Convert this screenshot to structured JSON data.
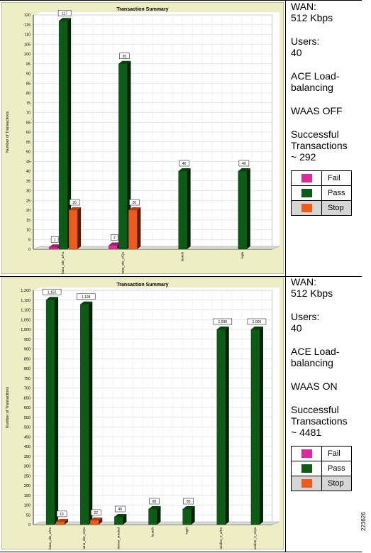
{
  "panels": [
    {
      "info": {
        "wan": "WAN:\n512 Kbps",
        "users": "Users:\n40",
        "lb": "ACE Load-\nbalancing",
        "waas": "WAAS OFF",
        "success": "Successful\nTransactions\n~ 292"
      }
    },
    {
      "info": {
        "wan": "WAN:\n512 Kbps",
        "users": "Users:\n40",
        "lb": "ACE Load-\nbalancing",
        "waas": "WAAS ON",
        "success": "Successful\nTransactions\n~ 4481"
      }
    }
  ],
  "legend": {
    "items": [
      {
        "label": "Fail",
        "color": "#e0299a"
      },
      {
        "label": "Pass",
        "color": "#0b5c14"
      },
      {
        "label": "Stop",
        "color": "#f25a1c"
      }
    ]
  },
  "figure_id": "223626",
  "chart_data": [
    {
      "type": "bar",
      "title": "Transaction Summary",
      "ylabel": "Number of Transactions",
      "xlabel": "",
      "ylim": [
        0,
        120
      ],
      "ytick_step": 5,
      "grid": true,
      "categories": [
        "hana_site_a/Fa",
        "hana_site_a/Qa",
        "launch",
        "login"
      ],
      "series": [
        {
          "name": "Fail",
          "color": "#e0299a",
          "values": [
            1,
            2,
            0,
            0
          ]
        },
        {
          "name": "Pass",
          "color": "#0b5c14",
          "values": [
            117,
            95,
            40,
            40
          ]
        },
        {
          "name": "Stop",
          "color": "#f25a1c",
          "values": [
            20,
            20,
            0,
            0
          ]
        }
      ],
      "data_labels": [
        [
          "1",
          "117",
          "20"
        ],
        [
          "2",
          "95",
          "20"
        ],
        [
          "",
          "40",
          ""
        ],
        [
          "",
          "40",
          ""
        ]
      ]
    },
    {
      "type": "bar",
      "title": "Transaction Summary",
      "ylabel": "Number of Transactions",
      "xlabel": "",
      "ylim": [
        0,
        1200
      ],
      "ytick_step": 50,
      "grid": true,
      "categories": [
        "hana_site_a/Fa",
        "hana_site_a/Qa",
        "internet_unrated",
        "launch",
        "login",
        "site_number_2_a/Fa",
        "site_number_2_a/Qa"
      ],
      "series": [
        {
          "name": "Fail",
          "color": "#e0299a",
          "values": [
            0,
            0,
            0,
            0,
            0,
            0,
            0
          ]
        },
        {
          "name": "Pass",
          "color": "#0b5c14",
          "values": [
            1152,
            1128,
            40,
            80,
            80,
            1000,
            1000
          ]
        },
        {
          "name": "Stop",
          "color": "#f25a1c",
          "values": [
            15,
            22,
            0,
            0,
            0,
            0,
            0
          ]
        }
      ],
      "data_labels": [
        [
          "",
          "1,152",
          "15"
        ],
        [
          "",
          "1,128",
          "22"
        ],
        [
          "",
          "40",
          ""
        ],
        [
          "",
          "80",
          ""
        ],
        [
          "",
          "80",
          ""
        ],
        [
          "",
          "1,000",
          ""
        ],
        [
          "",
          "1,000",
          ""
        ]
      ]
    }
  ]
}
